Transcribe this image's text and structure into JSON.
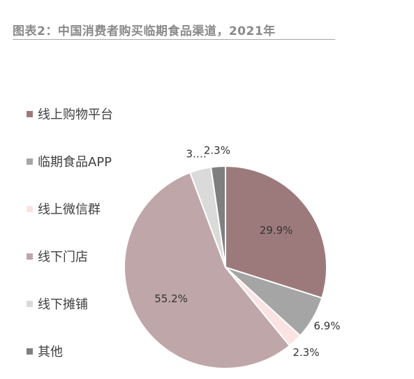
{
  "header": {
    "title": "图表2：中国消费者购买临期食品渠道，2021年"
  },
  "chart_data": {
    "type": "pie",
    "title": "图表2：中国消费者购买临期食品渠道，2021年",
    "legend_position": "left",
    "start": "12 o'clock, clockwise",
    "slices": [
      {
        "label": "线上购物平台",
        "value": 29.9,
        "display": "29.9%",
        "color": "#9c7a7b"
      },
      {
        "label": "临期食品APP",
        "value": 6.9,
        "display": "6.9%",
        "color": "#a5a5a5"
      },
      {
        "label": "线上微信群",
        "value": 2.3,
        "display": "2.3%",
        "color": "#fbe3e3"
      },
      {
        "label": "线下门店",
        "value": 55.2,
        "display": "55.2%",
        "color": "#bfa6a8"
      },
      {
        "label": "线下摊铺",
        "value": 3.4,
        "display": "3.…",
        "color": "#dadada"
      },
      {
        "label": "其他",
        "value": 2.3,
        "display": "2.3%",
        "color": "#7f7f7f"
      }
    ]
  }
}
